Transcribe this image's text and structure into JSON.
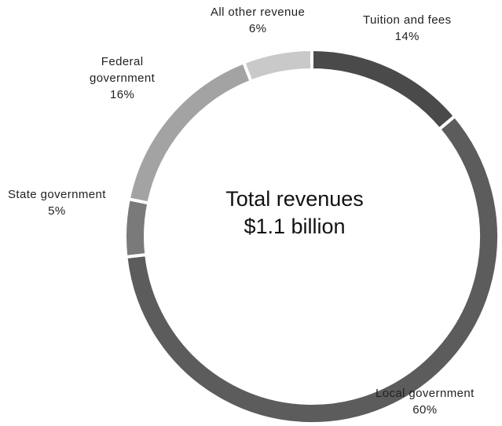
{
  "chart_data": {
    "type": "pie",
    "center_text": {
      "line1": "Total revenues",
      "line2": "$1.1 billion"
    },
    "slices": [
      {
        "key": "tuition",
        "name": "Tuition and fees",
        "value": 14,
        "label": "14%",
        "color": "#4a4a4a"
      },
      {
        "key": "local",
        "name": "Local government",
        "value": 60,
        "label": "60%",
        "color": "#5c5c5c"
      },
      {
        "key": "state",
        "name": "State government",
        "value": 5,
        "label": "5%",
        "color": "#7a7a7a"
      },
      {
        "key": "federal",
        "name": "Federal government",
        "name_lines": [
          "Federal",
          "government"
        ],
        "value": 16,
        "label": "16%",
        "color": "#a3a3a3"
      },
      {
        "key": "other",
        "name": "All other revenue",
        "value": 6,
        "label": "6%",
        "color": "#c9c9c9"
      }
    ]
  }
}
